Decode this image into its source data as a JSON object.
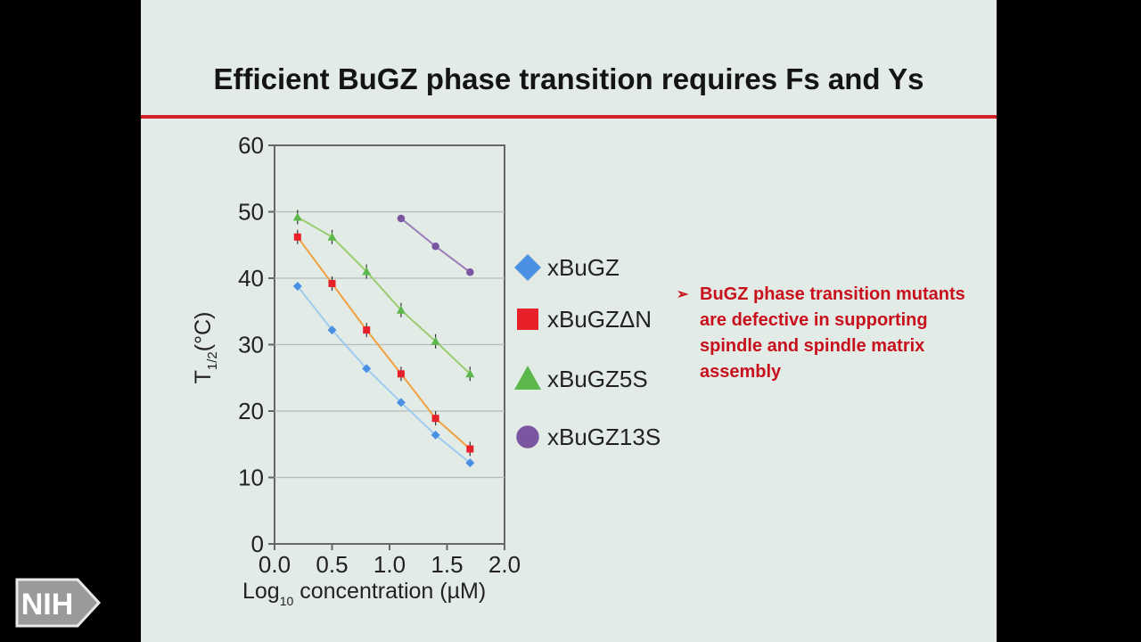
{
  "slide": {
    "title": "Efficient BuGZ phase transition requires Fs and Ys",
    "bullet_marker": "➢",
    "bullet_text": "BuGZ phase transition mutants are defective in supporting spindle and spindle matrix assembly",
    "logo_text": "NIH",
    "accent_color": "#d0202a"
  },
  "chart_data": {
    "type": "scatter",
    "xlabel_main": "Log",
    "xlabel_sub": "10",
    "xlabel_rest": " concentration (µM)",
    "ylabel_main": "T",
    "ylabel_sub": "1/2",
    "ylabel_rest": "(°C)",
    "xlim": [
      0,
      2.0
    ],
    "ylim": [
      0,
      60
    ],
    "xticks": [
      "0.0",
      "0.5",
      "1.0",
      "1.5",
      "2.0"
    ],
    "yticks": [
      "0",
      "10",
      "20",
      "30",
      "40",
      "50",
      "60"
    ],
    "grid": "horizontal",
    "legend_position": "right",
    "series": [
      {
        "name": "xBuGZ",
        "color": "#4a90e2",
        "marker": "diamond",
        "x": [
          0.2,
          0.5,
          0.8,
          1.1,
          1.4,
          1.7
        ],
        "y": [
          38.8,
          32.2,
          26.4,
          21.3,
          16.4,
          12.2
        ]
      },
      {
        "name": "xBuGZΔN",
        "color": "#e8202a",
        "marker": "square",
        "x": [
          0.2,
          0.5,
          0.8,
          1.1,
          1.4,
          1.7
        ],
        "y": [
          46.2,
          39.2,
          32.2,
          25.6,
          18.9,
          14.3
        ]
      },
      {
        "name": "xBuGZ5S",
        "color": "#5cb84a",
        "marker": "triangle",
        "x": [
          0.2,
          0.5,
          0.8,
          1.1,
          1.4,
          1.7
        ],
        "y": [
          49.2,
          46.2,
          41.0,
          35.2,
          30.5,
          25.6
        ]
      },
      {
        "name": "xBuGZ13S",
        "color": "#7a55a0",
        "marker": "circle",
        "x": [
          1.1,
          1.4,
          1.7
        ],
        "y": [
          49.0,
          44.8,
          40.9
        ]
      }
    ],
    "line_colors": [
      "#9ecbf0",
      "#f0a040",
      "#9acc70",
      "#9a7ab8"
    ]
  }
}
